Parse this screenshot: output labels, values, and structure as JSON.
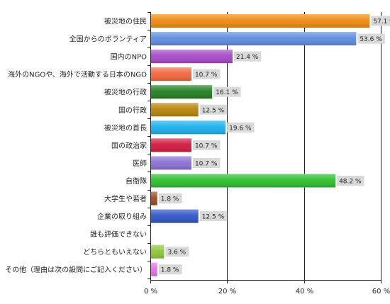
{
  "chart_data": {
    "type": "bar",
    "orientation": "horizontal",
    "categories": [
      "被災地の住民",
      "全国からのボランティア",
      "国内のNPO",
      "海外のNGOや、海外で活動する日本のNGO",
      "被災地の行政",
      "国の行政",
      "被災地の首長",
      "国の政治家",
      "医師",
      "自衛隊",
      "大学生や若者",
      "企業の取り組み",
      "誰も評価できない",
      "どちらともいえない",
      "その他（理由は次の設問にご記入ください）"
    ],
    "values": [
      57.1,
      53.6,
      21.4,
      10.7,
      16.1,
      12.5,
      19.6,
      10.7,
      10.7,
      48.2,
      1.8,
      12.5,
      null,
      3.6,
      1.8
    ],
    "value_labels": [
      "57.1 %",
      "53.6 %",
      "21.4 %",
      "10.7 %",
      "16.1 %",
      "12.5 %",
      "19.6 %",
      "10.7 %",
      "10.7 %",
      "48.2 %",
      "1.8 %",
      "12.5 %",
      "",
      "3.6 %",
      "1.8 %"
    ],
    "colors": [
      "#ee8a0e",
      "#5d8de0",
      "#a648c8",
      "#f2663e",
      "#237f23",
      "#b8830c",
      "#1ab0ee",
      "#d2183e",
      "#8a70d4",
      "#2cbf2c",
      "#a04a1c",
      "#3055c6",
      "#9a9a9a",
      "#8ec63a",
      "#e670ea"
    ],
    "xlim": [
      0,
      60
    ],
    "xticks": [
      0,
      20,
      40,
      60
    ],
    "xtick_labels": [
      "0 %",
      "20 %",
      "40 %",
      "60 %"
    ],
    "grid": true,
    "legend": "none"
  }
}
